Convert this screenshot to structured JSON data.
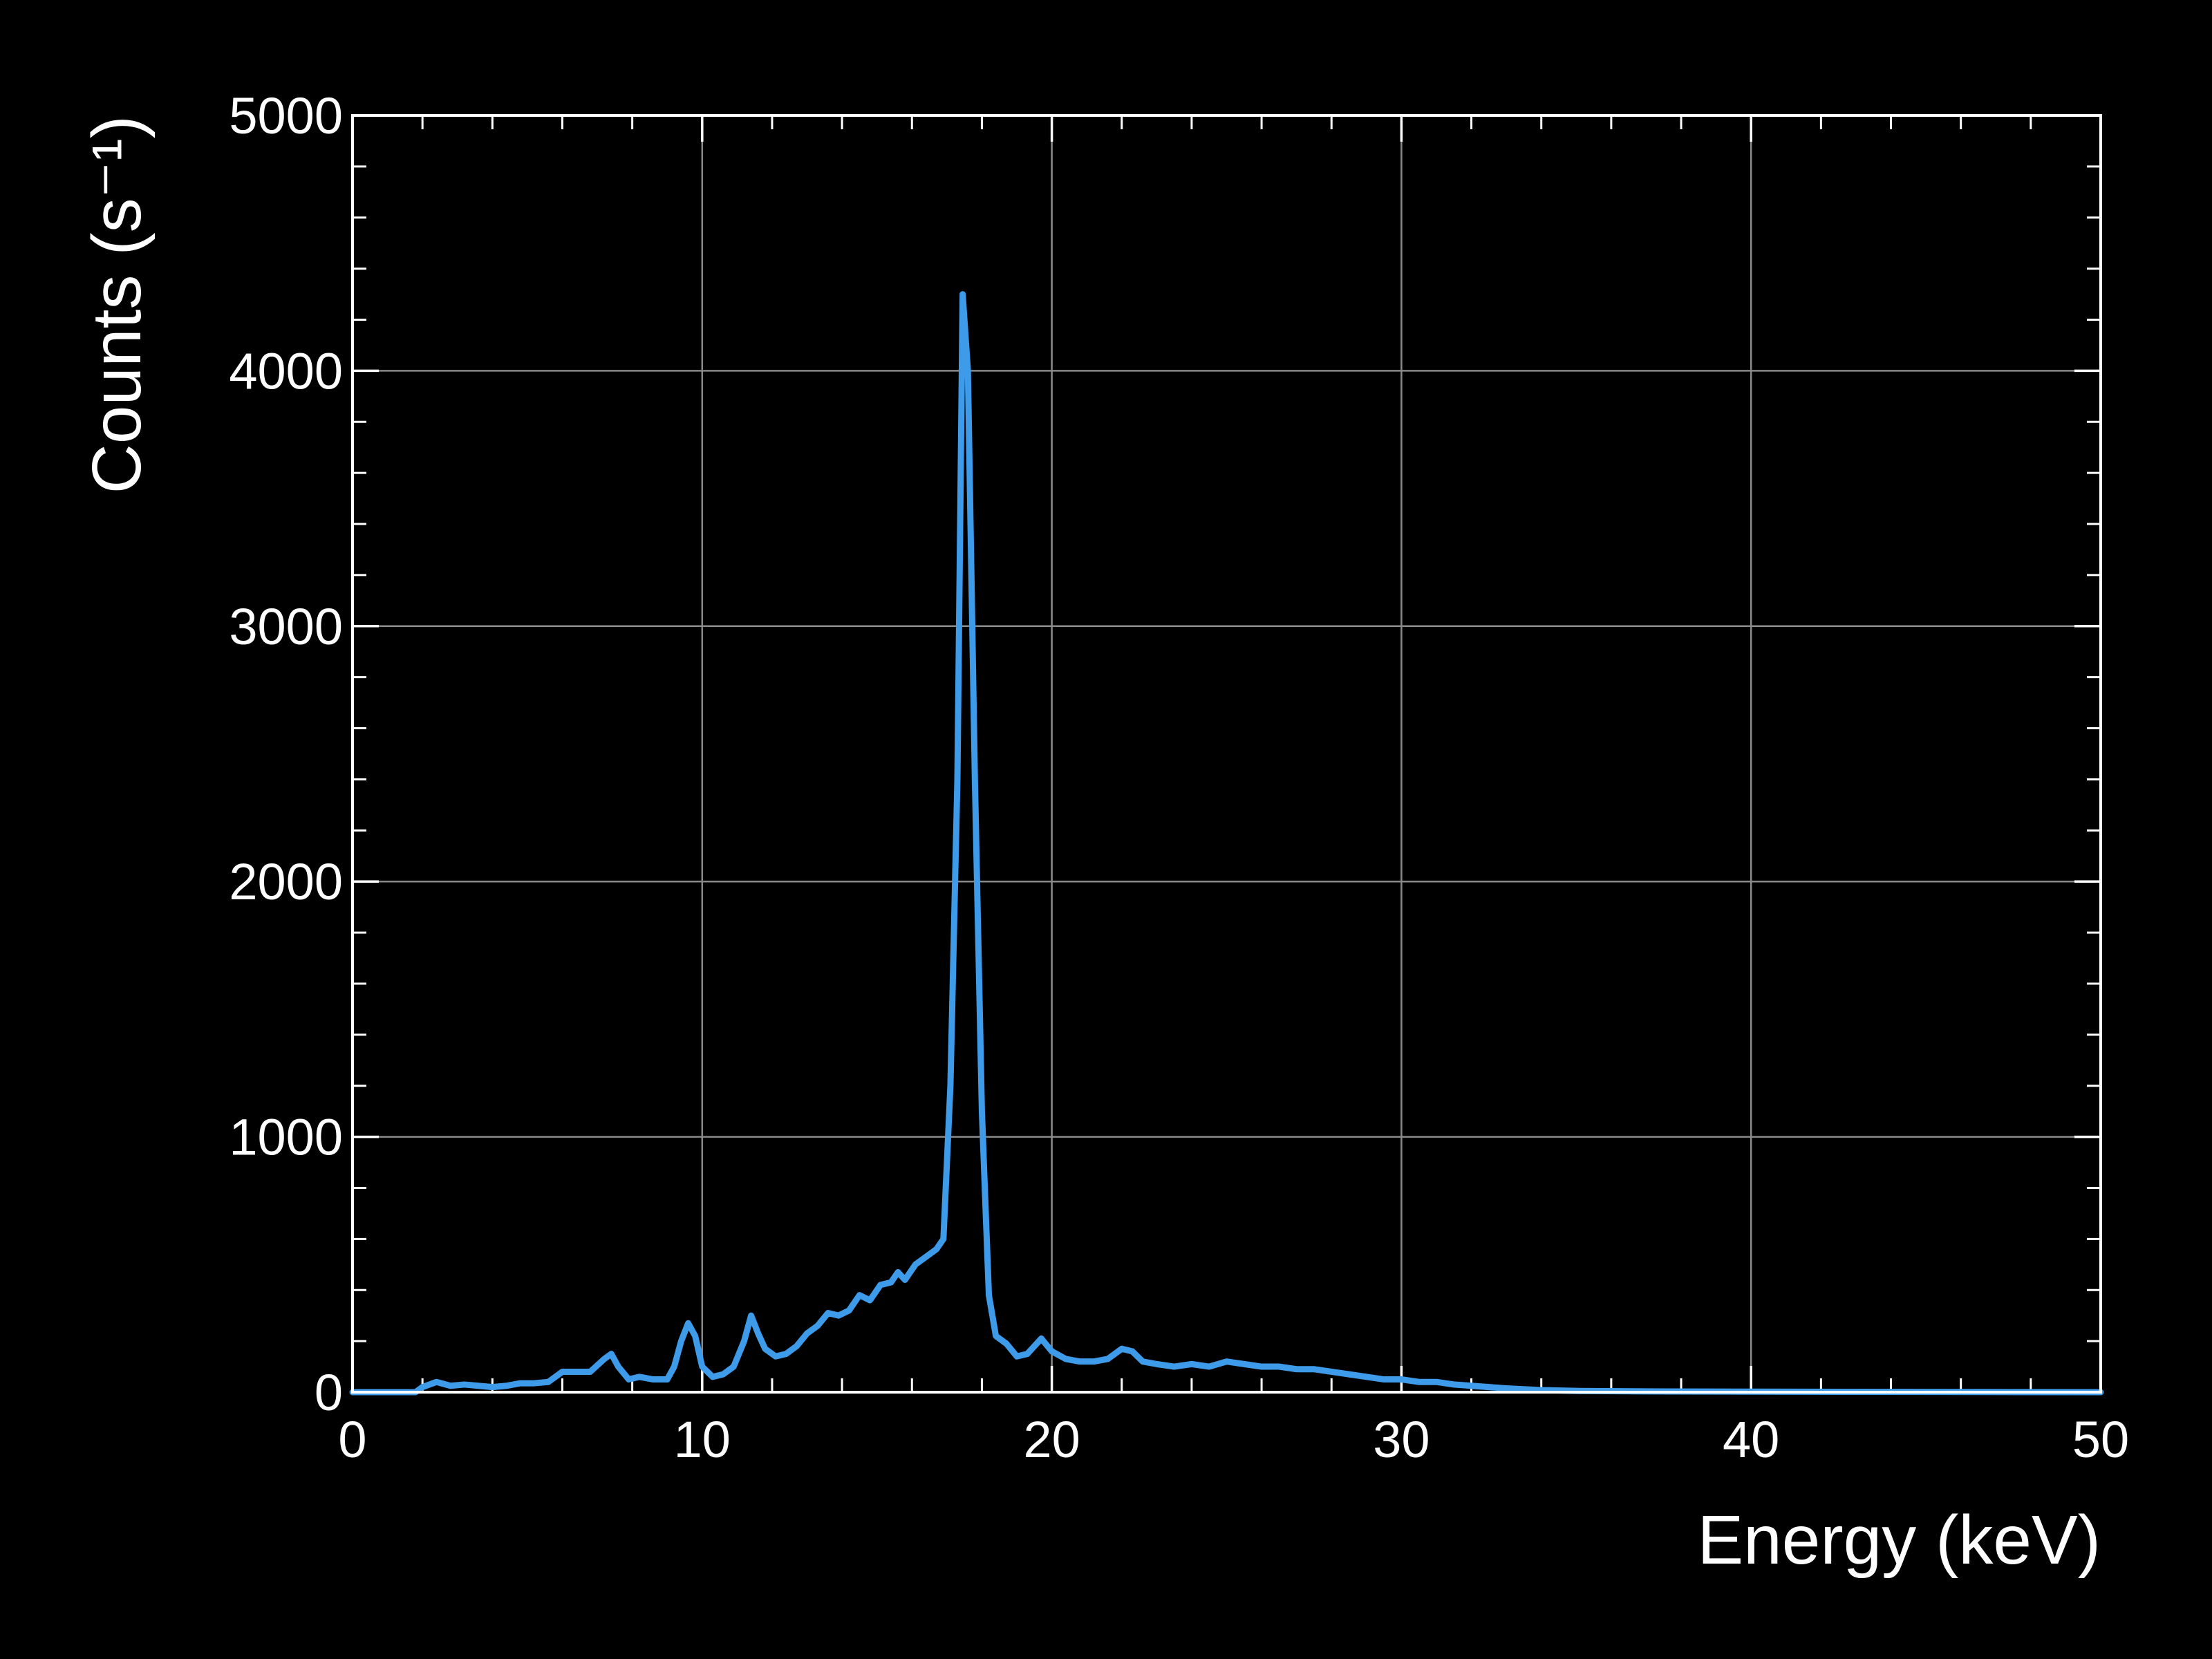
{
  "chart_data": {
    "type": "line",
    "xlabel": "Energy (keV)",
    "ylabel": "Counts (s⁻¹)",
    "xlim": [
      0,
      50
    ],
    "ylim": [
      0,
      5000
    ],
    "xticks": [
      0,
      10,
      20,
      30,
      40,
      50
    ],
    "yticks": [
      0,
      1000,
      2000,
      3000,
      4000,
      5000
    ],
    "grid": true,
    "x": [
      0,
      1,
      1.8,
      2,
      2.4,
      2.8,
      3.2,
      3.6,
      4,
      4.4,
      4.8,
      5.2,
      5.6,
      6,
      6.4,
      6.8,
      7.2,
      7.4,
      7.6,
      7.9,
      8.2,
      8.6,
      9,
      9.2,
      9.4,
      9.6,
      9.8,
      10,
      10.3,
      10.6,
      10.9,
      11.2,
      11.4,
      11.6,
      11.8,
      12.1,
      12.4,
      12.7,
      13,
      13.3,
      13.6,
      13.9,
      14.2,
      14.5,
      14.8,
      15.1,
      15.4,
      15.6,
      15.8,
      16.1,
      16.4,
      16.7,
      16.9,
      17.1,
      17.3,
      17.45,
      17.6,
      17.8,
      18,
      18.2,
      18.4,
      18.7,
      19,
      19.3,
      19.7,
      20,
      20.4,
      20.8,
      21.2,
      21.6,
      22,
      22.3,
      22.6,
      23,
      23.5,
      24,
      24.5,
      25,
      25.5,
      26,
      26.5,
      27,
      27.5,
      28,
      28.5,
      29,
      29.5,
      30,
      30.5,
      31,
      31.5,
      32,
      33,
      34,
      35,
      37,
      40,
      45,
      50
    ],
    "series": [
      {
        "name": "Counts",
        "color": "#3d9be9",
        "values": [
          0,
          0,
          0,
          20,
          40,
          25,
          30,
          25,
          20,
          25,
          35,
          35,
          40,
          80,
          80,
          80,
          130,
          150,
          100,
          50,
          60,
          50,
          50,
          100,
          200,
          270,
          220,
          100,
          60,
          70,
          100,
          200,
          300,
          230,
          170,
          140,
          150,
          180,
          230,
          260,
          310,
          300,
          320,
          380,
          360,
          420,
          430,
          470,
          440,
          500,
          530,
          560,
          600,
          1200,
          2400,
          4300,
          4000,
          2400,
          1100,
          380,
          220,
          190,
          140,
          150,
          210,
          160,
          130,
          120,
          120,
          130,
          170,
          160,
          120,
          110,
          100,
          110,
          100,
          120,
          110,
          100,
          100,
          90,
          90,
          80,
          70,
          60,
          50,
          50,
          40,
          40,
          30,
          25,
          15,
          8,
          5,
          3,
          2,
          1,
          0
        ]
      }
    ]
  }
}
